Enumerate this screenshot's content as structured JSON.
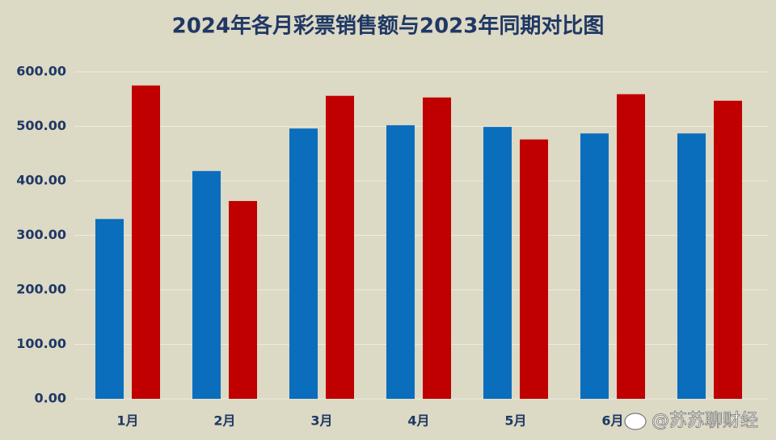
{
  "chart_data": {
    "type": "bar",
    "title": "2024年各月彩票销售额与2023年同期对比图",
    "categories": [
      "1月",
      "2月",
      "3月",
      "4月",
      "5月",
      "6月",
      null
    ],
    "series": [
      {
        "color": "#0a6ebd",
        "values": [
          330,
          418,
          496,
          502,
          499,
          487,
          487
        ]
      },
      {
        "color": "#c00000",
        "values": [
          575,
          363,
          556,
          553,
          476,
          559,
          547
        ]
      }
    ],
    "ylim": [
      0,
      600
    ],
    "yticks": [
      {
        "value": 0,
        "label": "0.00"
      },
      {
        "value": 100,
        "label": "100.00"
      },
      {
        "value": 200,
        "label": "200.00"
      },
      {
        "value": 300,
        "label": "300.00"
      },
      {
        "value": 400,
        "label": "400.00"
      },
      {
        "value": 500,
        "label": "500.00"
      },
      {
        "value": 600,
        "label": "600.00"
      }
    ],
    "grid": true,
    "watermark": "@苏苏聊财经"
  }
}
